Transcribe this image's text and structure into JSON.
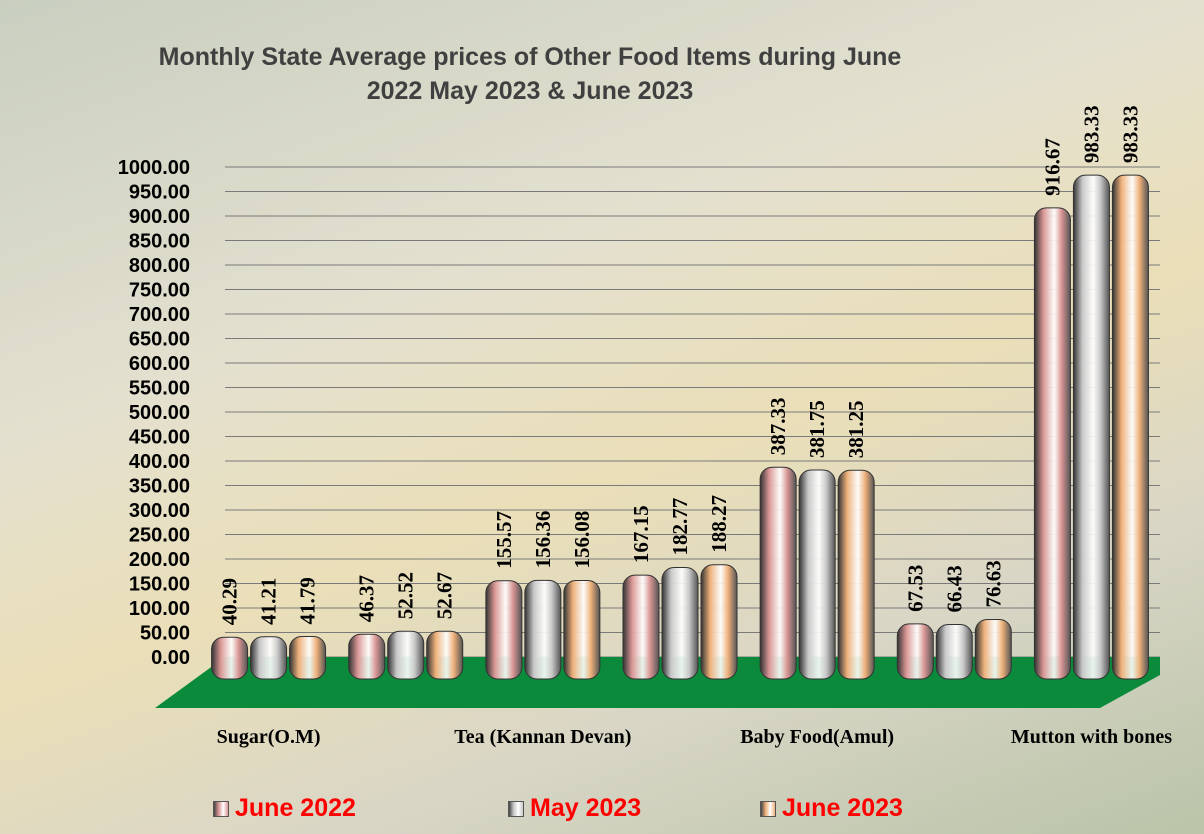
{
  "chart_data": {
    "type": "bar",
    "title": "Monthly State Average prices of Other Food Items during June 2022  May 2023  & June 2023",
    "categories": [
      "Sugar(O.M)",
      null,
      "Tea (Kannan Devan)",
      null,
      "Baby Food(Amul)",
      null,
      "Mutton with  bones"
    ],
    "series": [
      {
        "name": "June 2022",
        "color": "#d99694",
        "values": [
          40.29,
          46.37,
          155.57,
          167.15,
          387.33,
          67.53,
          916.67
        ]
      },
      {
        "name": "May 2023",
        "color": "#c8c8c8",
        "values": [
          41.21,
          52.52,
          156.36,
          182.77,
          381.75,
          66.43,
          983.33
        ]
      },
      {
        "name": "June 2023",
        "color": "#eeb07a",
        "values": [
          41.79,
          52.67,
          156.08,
          188.27,
          381.25,
          76.63,
          983.33
        ]
      }
    ],
    "ylim": [
      0,
      1000
    ],
    "yticks": [
      {
        "value": 0,
        "label": "0.00"
      },
      {
        "value": 50,
        "label": "50.00"
      },
      {
        "value": 100,
        "label": "100.00"
      },
      {
        "value": 150,
        "label": "150.00"
      },
      {
        "value": 200,
        "label": "200.00"
      },
      {
        "value": 250,
        "label": "250.00"
      },
      {
        "value": 300,
        "label": "300.00"
      },
      {
        "value": 350,
        "label": "350.00"
      },
      {
        "value": 400,
        "label": "400.00"
      },
      {
        "value": 450,
        "label": "450.00"
      },
      {
        "value": 500,
        "label": "500.00"
      },
      {
        "value": 550,
        "label": "550.00"
      },
      {
        "value": 600,
        "label": "600.00"
      },
      {
        "value": 650,
        "label": "650.00"
      },
      {
        "value": 700,
        "label": "700.00"
      },
      {
        "value": 750,
        "label": "750.00"
      },
      {
        "value": 800,
        "label": "800.00"
      },
      {
        "value": 850,
        "label": "850.00"
      },
      {
        "value": 900,
        "label": "900.00"
      },
      {
        "value": 950,
        "label": "950.00"
      },
      {
        "value": 1000,
        "label": "1000.00"
      }
    ],
    "grid": true
  }
}
